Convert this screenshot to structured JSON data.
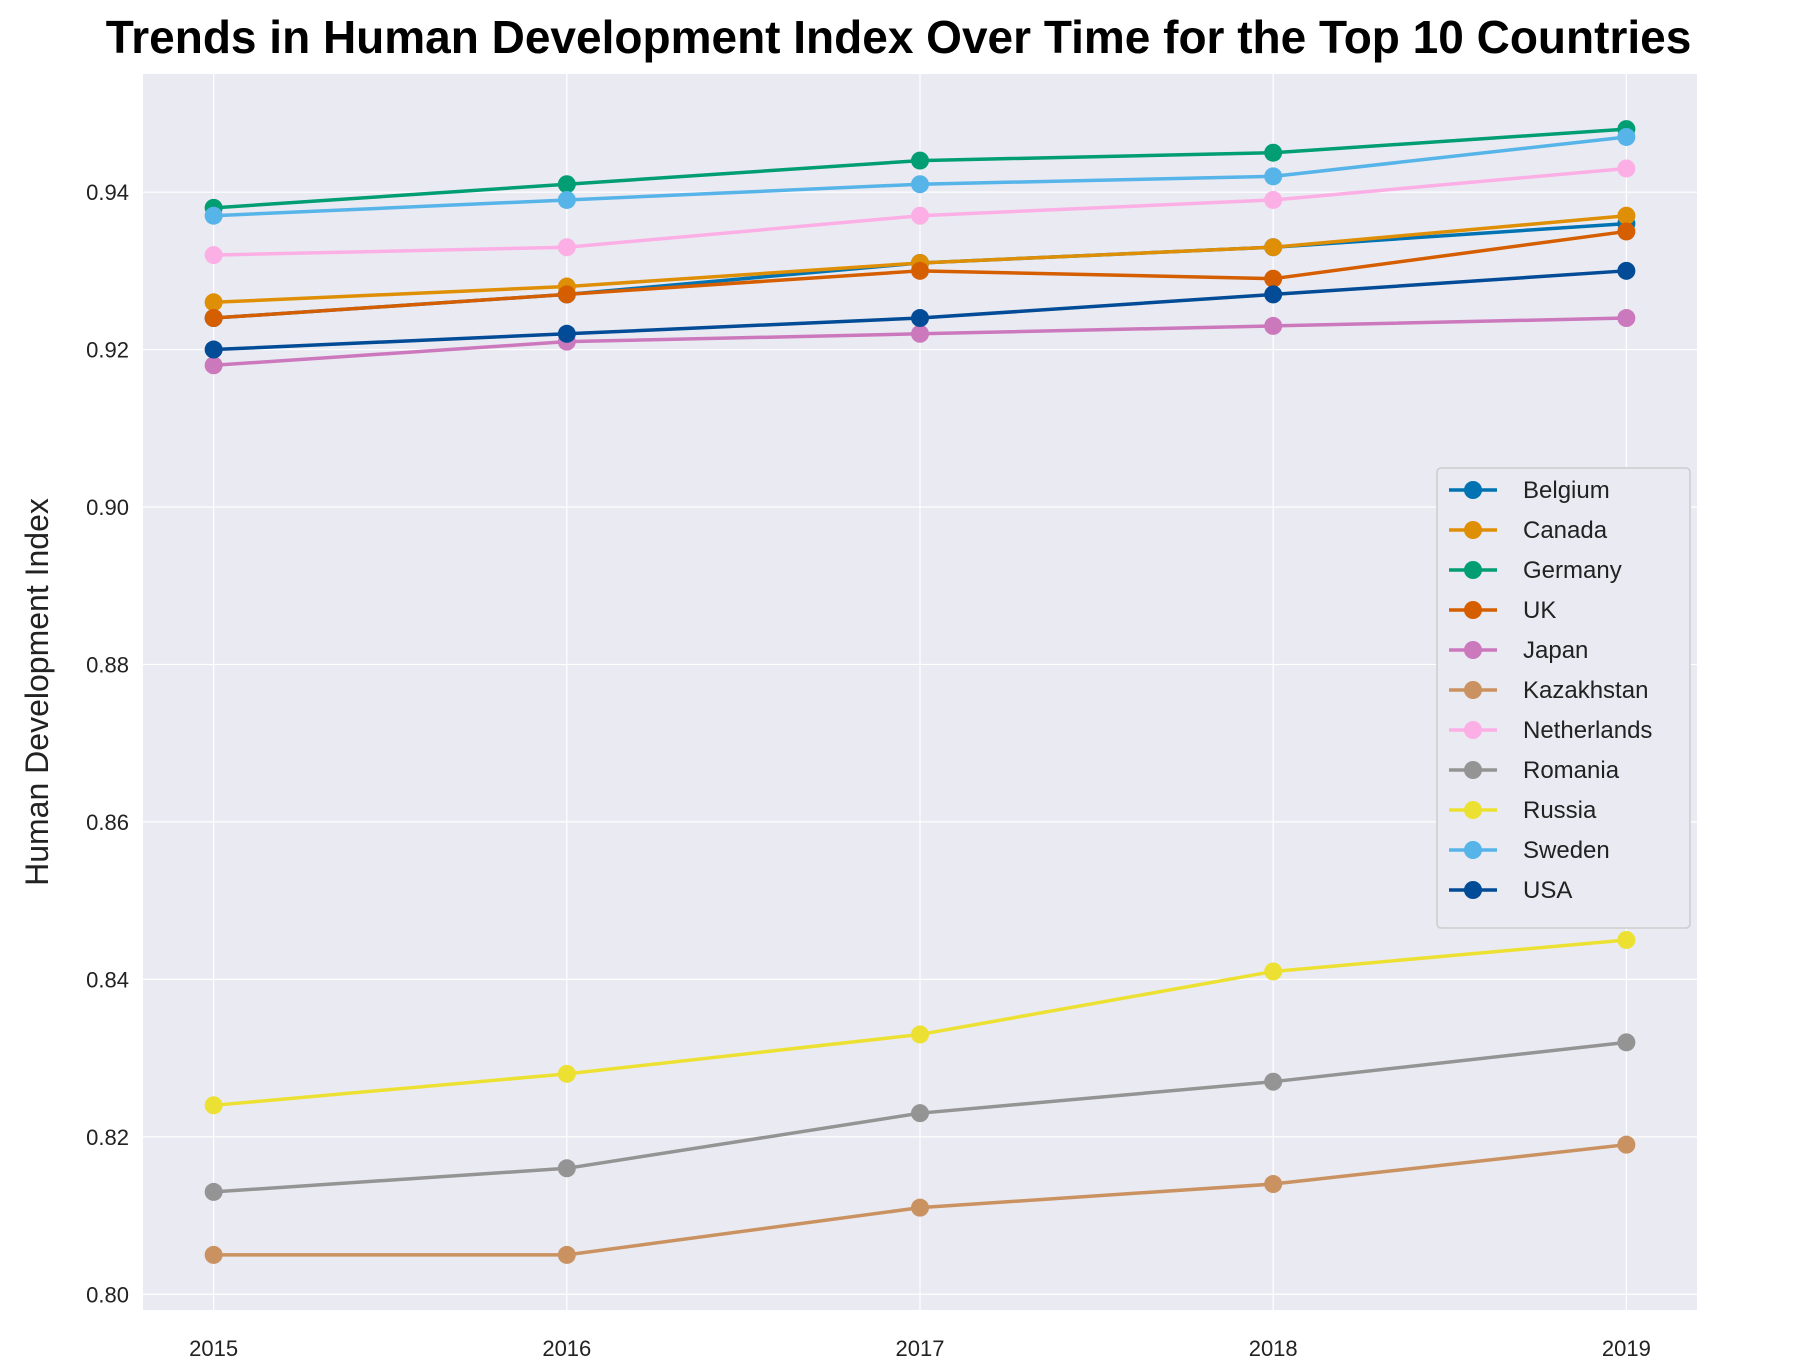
{
  "chart_data": {
    "type": "line",
    "title": "Trends in Human Development Index Over Time for the Top 10 Countries",
    "xlabel": "",
    "ylabel": "Human Development Index",
    "x": [
      2015,
      2016,
      2017,
      2018,
      2019
    ],
    "xticks": [
      "2015",
      "2016",
      "2017",
      "2018",
      "2019"
    ],
    "yticks": [
      "0.80",
      "0.82",
      "0.84",
      "0.86",
      "0.88",
      "0.90",
      "0.92",
      "0.94"
    ],
    "yticks_values": [
      0.8,
      0.82,
      0.84,
      0.86,
      0.88,
      0.9,
      0.92,
      0.94
    ],
    "xlim": [
      2014.8,
      2019.2
    ],
    "ylim": [
      0.798,
      0.955
    ],
    "grid": true,
    "legend_position": "center-right",
    "background": "#eaeaf2",
    "series": [
      {
        "name": "Belgium",
        "color": "#0173b2",
        "values": [
          0.924,
          0.927,
          0.931,
          0.933,
          0.936
        ]
      },
      {
        "name": "Canada",
        "color": "#de8f05",
        "values": [
          0.926,
          0.928,
          0.931,
          0.933,
          0.937
        ]
      },
      {
        "name": "Germany",
        "color": "#029e73",
        "values": [
          0.938,
          0.941,
          0.944,
          0.945,
          0.948
        ]
      },
      {
        "name": "UK",
        "color": "#d55e00",
        "values": [
          0.924,
          0.927,
          0.93,
          0.929,
          0.935
        ]
      },
      {
        "name": "Japan",
        "color": "#cc78bc",
        "values": [
          0.918,
          0.921,
          0.922,
          0.923,
          0.924
        ]
      },
      {
        "name": "Kazakhstan",
        "color": "#ca9161",
        "values": [
          0.805,
          0.805,
          0.811,
          0.814,
          0.819
        ]
      },
      {
        "name": "Netherlands",
        "color": "#fbafe4",
        "values": [
          0.932,
          0.933,
          0.937,
          0.939,
          0.943
        ]
      },
      {
        "name": "Romania",
        "color": "#949494",
        "values": [
          0.813,
          0.816,
          0.823,
          0.827,
          0.832
        ]
      },
      {
        "name": "Russia",
        "color": "#ece133",
        "values": [
          0.824,
          0.828,
          0.833,
          0.841,
          0.845
        ]
      },
      {
        "name": "Sweden",
        "color": "#56b4e9",
        "values": [
          0.937,
          0.939,
          0.941,
          0.942,
          0.947
        ]
      },
      {
        "name": "USA",
        "color": "#024b96",
        "values": [
          0.92,
          0.922,
          0.924,
          0.927,
          0.93
        ]
      }
    ]
  }
}
